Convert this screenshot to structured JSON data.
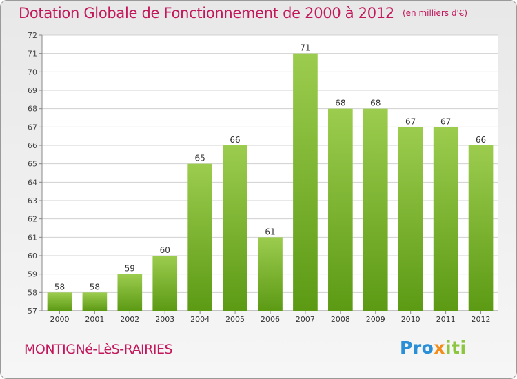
{
  "header": {
    "title": "Dotation Globale de Fonctionnement de 2000 à 2012",
    "unit": "(en milliers d'€)"
  },
  "footer": {
    "commune": "MONTIGNé-LèS-RAIRIES",
    "logo_part1": "Pro",
    "logo_part2": "x",
    "logo_part3": "iti"
  },
  "colors": {
    "title": "#c2185b",
    "bar_top": "#9ccc4e",
    "bar_bottom": "#5c9a14",
    "axis": "#888888",
    "grid": "#d0d0d0"
  },
  "chart_data": {
    "type": "bar",
    "title": "Dotation Globale de Fonctionnement de 2000 à 2012",
    "subtitle": "(en milliers d'€)",
    "categories": [
      "2000",
      "2001",
      "2002",
      "2003",
      "2004",
      "2005",
      "2006",
      "2007",
      "2008",
      "2009",
      "2010",
      "2011",
      "2012"
    ],
    "values": [
      58,
      58,
      59,
      60,
      65,
      66,
      61,
      71,
      68,
      68,
      67,
      67,
      66
    ],
    "ylim": [
      57,
      72
    ],
    "yticks": [
      57,
      58,
      59,
      60,
      61,
      62,
      63,
      64,
      65,
      66,
      67,
      68,
      69,
      70,
      71,
      72
    ],
    "grid": true,
    "xlabel": "",
    "ylabel": ""
  }
}
